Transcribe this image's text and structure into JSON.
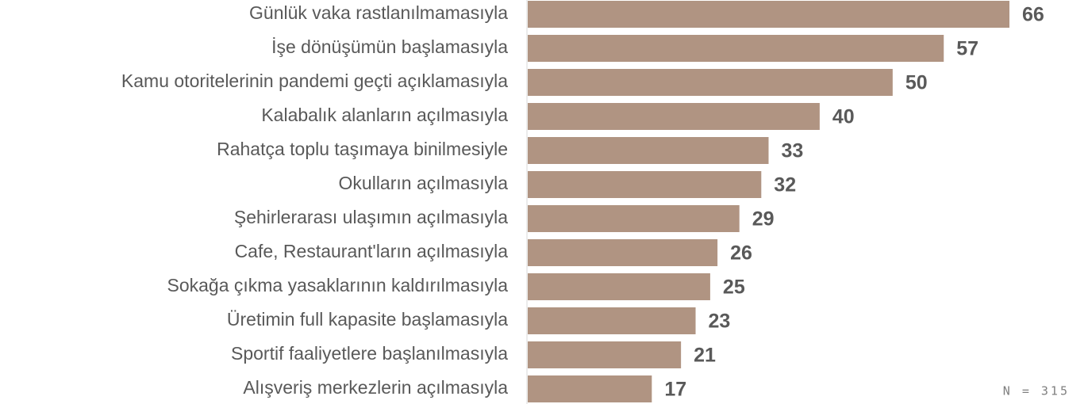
{
  "chart_data": {
    "type": "bar",
    "orientation": "horizontal",
    "categories": [
      "Günlük vaka rastlanılmamasıyla",
      "İşe dönüşümün başlamasıyla",
      "Kamu otoritelerinin pandemi geçti açıklamasıyla",
      "Kalabalık alanların açılmasıyla",
      "Rahatça toplu taşımaya binilmesiyle",
      "Okulların açılmasıyla",
      "Şehirlerarası ulaşımın açılmasıyla",
      "Cafe, Restaurant'ların açılmasıyla",
      "Sokağa çıkma yasaklarının kaldırılmasıyla",
      "Üretimin full kapasite başlamasıyla",
      "Sportif faaliyetlere başlanılmasıyla",
      "Alışveriş merkezlerin açılmasıyla"
    ],
    "values": [
      66,
      57,
      50,
      40,
      33,
      32,
      29,
      26,
      25,
      23,
      21,
      17
    ],
    "color": "#b09482",
    "note": "N = 315"
  }
}
